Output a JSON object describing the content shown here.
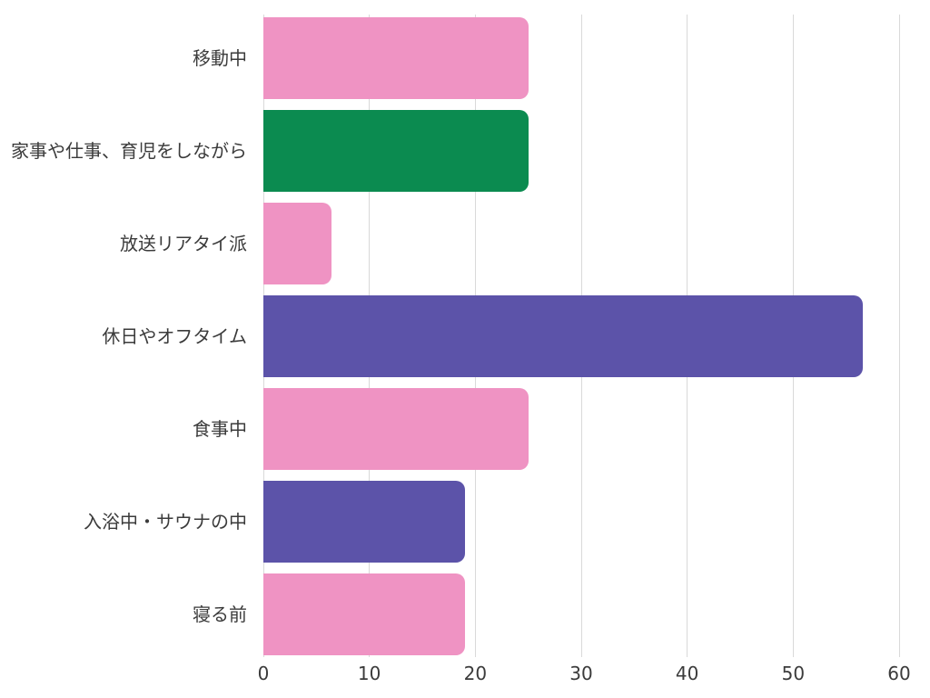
{
  "chart_data": {
    "type": "bar",
    "orientation": "horizontal",
    "title": "",
    "xlabel": "",
    "ylabel": "",
    "legend": "none",
    "grid": "vertical",
    "categories": [
      "移動中",
      "家事や仕事、育児をしながら",
      "放送リアタイ派",
      "休日やオフタイム",
      "食事中",
      "入浴中・サウナの中",
      "寝る前"
    ],
    "values": [
      25,
      25,
      6.4,
      56.6,
      25,
      19,
      19
    ],
    "bar_colors": [
      "#ef93c3",
      "#0b8b50",
      "#ef93c3",
      "#5c53a9",
      "#ef93c3",
      "#5c53a9",
      "#ef93c3"
    ],
    "xlim": [
      0,
      60
    ],
    "x_ticks": [
      0,
      10,
      20,
      30,
      40,
      50,
      60
    ],
    "colors": {
      "background": "#ffffff",
      "gridline": "#d9d9d9",
      "text": "#3b3b3b"
    }
  }
}
